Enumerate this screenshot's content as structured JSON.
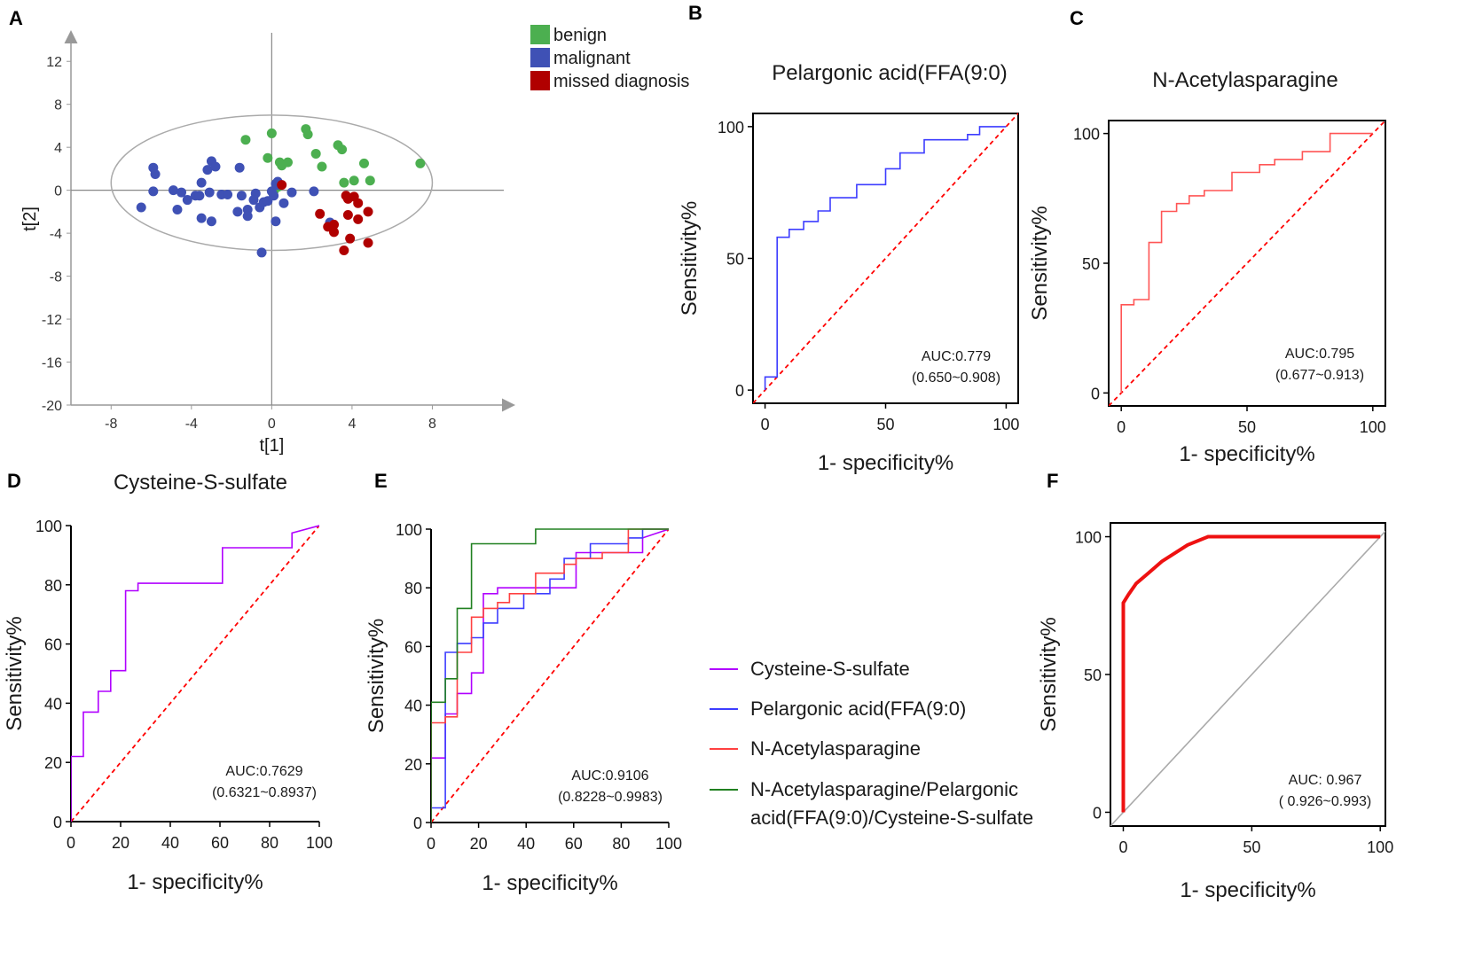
{
  "chart_data": [
    {
      "id": "A",
      "panel_label": "A",
      "type": "scatter",
      "xlabel": "t[1]",
      "ylabel": "t[2]",
      "xlim": [
        -10,
        12
      ],
      "ylim": [
        -20,
        14
      ],
      "x_ticks": [
        -8,
        -4,
        0,
        4,
        8
      ],
      "x_tick_labels": [
        "-8",
        "-4",
        "0",
        "4",
        "8"
      ],
      "y_ticks": [
        12,
        8,
        4,
        0,
        -4,
        -8,
        -12,
        -16,
        -20
      ],
      "y_tick_labels": [
        "12",
        "8",
        "4",
        "0",
        "-4",
        "-8",
        "-12",
        "-16",
        "-20"
      ],
      "ellipse": {
        "cx": 0,
        "cy": 0.7,
        "rx": 8,
        "ry": 6.3
      },
      "series": [
        {
          "name": "benign",
          "color": "#4caf50",
          "points": [
            [
              -1.3,
              4.7
            ],
            [
              0,
              5.3
            ],
            [
              1.7,
              5.7
            ],
            [
              1.8,
              5.2
            ],
            [
              -0.2,
              3
            ],
            [
              0.4,
              2.6
            ],
            [
              0.5,
              2.3
            ],
            [
              0.8,
              2.6
            ],
            [
              2.2,
              3.4
            ],
            [
              2.5,
              2.2
            ],
            [
              3.3,
              4.2
            ],
            [
              3.5,
              3.8
            ],
            [
              4.6,
              2.5
            ],
            [
              3.6,
              0.7
            ],
            [
              4.1,
              0.9
            ],
            [
              4.9,
              0.9
            ],
            [
              7.4,
              2.5
            ],
            [
              0.3,
              0.3
            ],
            [
              0.1,
              -0.1
            ]
          ]
        },
        {
          "name": "malignant",
          "color": "#3f51b5",
          "points": [
            [
              -5.9,
              2.1
            ],
            [
              -5.8,
              1.5
            ],
            [
              -5.9,
              -0.1
            ],
            [
              -6.5,
              -1.6
            ],
            [
              -4.9,
              0
            ],
            [
              -4.5,
              -0.2
            ],
            [
              -4.7,
              -1.8
            ],
            [
              -4.2,
              -0.9
            ],
            [
              -3.8,
              -0.5
            ],
            [
              -3.6,
              -0.5
            ],
            [
              -3.5,
              0.7
            ],
            [
              -3,
              2.7
            ],
            [
              -3.2,
              1.9
            ],
            [
              -2.8,
              2.2
            ],
            [
              -3.1,
              -0.2
            ],
            [
              -2.5,
              -0.4
            ],
            [
              -2.2,
              -0.4
            ],
            [
              -1.6,
              2.1
            ],
            [
              -1.5,
              -0.5
            ],
            [
              -0.8,
              -0.3
            ],
            [
              -0.6,
              -1.6
            ],
            [
              -0.4,
              -1.1
            ],
            [
              -0.2,
              -1
            ],
            [
              0.1,
              -0.5
            ],
            [
              0.2,
              0.6
            ],
            [
              0.3,
              0.8
            ],
            [
              0.6,
              -1.2
            ],
            [
              -1.7,
              -2
            ],
            [
              -3.5,
              -2.6
            ],
            [
              -3,
              -2.9
            ],
            [
              -1.2,
              -1.8
            ],
            [
              -1.2,
              -2.4
            ],
            [
              0.2,
              -2.9
            ],
            [
              -0.5,
              -5.8
            ],
            [
              1,
              -0.2
            ],
            [
              2.1,
              -0.1
            ],
            [
              2.9,
              -3
            ],
            [
              -0.9,
              -0.9
            ],
            [
              0,
              -0.1
            ],
            [
              0.3,
              0.5
            ]
          ]
        },
        {
          "name": "missed diagnosis",
          "color": "#b00000",
          "points": [
            [
              0.5,
              0.5
            ],
            [
              2.4,
              -2.2
            ],
            [
              3.1,
              -3.2
            ],
            [
              2.8,
              -3.4
            ],
            [
              3.8,
              -0.8
            ],
            [
              4.3,
              -1.2
            ],
            [
              3.8,
              -2.3
            ],
            [
              4.3,
              -2.7
            ],
            [
              4.8,
              -2
            ],
            [
              3.9,
              -4.5
            ],
            [
              3.6,
              -5.6
            ],
            [
              4.8,
              -4.9
            ],
            [
              3.1,
              -3.9
            ],
            [
              3.7,
              -0.5
            ],
            [
              4.1,
              -0.6
            ]
          ]
        }
      ]
    },
    {
      "id": "B",
      "panel_label": "B",
      "type": "line",
      "title": "Pelargonic acid(FFA(9:0)",
      "xlabel": "1- specificity%",
      "ylabel": "Sensitivity%",
      "xlim": [
        -5,
        105
      ],
      "ylim": [
        -5,
        105
      ],
      "x_ticks": [
        0,
        50,
        100
      ],
      "x_tick_labels": [
        "0",
        "50",
        "100"
      ],
      "y_ticks": [
        0,
        50,
        100
      ],
      "y_tick_labels": [
        "0",
        "50",
        "100"
      ],
      "auc_text": "AUC:0.779",
      "ci_text": "(0.650~0.908)",
      "series": [
        {
          "name": "ROC",
          "color": "#3d3dff",
          "x": [
            0,
            0,
            5,
            5,
            10,
            10,
            16,
            16,
            22,
            22,
            27,
            27,
            38,
            38,
            50,
            50,
            56,
            56,
            66,
            66,
            84,
            84,
            89,
            89,
            94,
            94,
            100
          ],
          "y": [
            0,
            5,
            5,
            58,
            58,
            61,
            61,
            64,
            64,
            68,
            68,
            73,
            73,
            78,
            78,
            84,
            84,
            90,
            90,
            95,
            95,
            97,
            97,
            100,
            100,
            100,
            100
          ]
        },
        {
          "name": "reference",
          "color": "#ff0000",
          "style": "dashed",
          "x": [
            -5,
            105
          ],
          "y": [
            -5,
            105
          ]
        }
      ]
    },
    {
      "id": "C",
      "panel_label": "C",
      "type": "line",
      "title": "N-Acetylasparagine",
      "xlabel": "1- specificity%",
      "ylabel": "Sensitivity%",
      "xlim": [
        -5,
        105
      ],
      "ylim": [
        -5,
        105
      ],
      "x_ticks": [
        0,
        50,
        100
      ],
      "x_tick_labels": [
        "0",
        "50",
        "100"
      ],
      "y_ticks": [
        0,
        50,
        100
      ],
      "y_tick_labels": [
        "0",
        "50",
        "100"
      ],
      "auc_text": "AUC:0.795",
      "ci_text": "(0.677~0.913)",
      "series": [
        {
          "name": "ROC",
          "color": "#ff5555",
          "x": [
            0,
            0,
            5,
            5,
            11,
            11,
            16,
            16,
            22,
            22,
            27,
            27,
            33,
            33,
            44,
            44,
            55,
            55,
            61,
            61,
            72,
            72,
            83,
            83,
            100
          ],
          "y": [
            0,
            34,
            34,
            36,
            36,
            58,
            58,
            70,
            70,
            73,
            73,
            76,
            76,
            78,
            78,
            85,
            85,
            88,
            88,
            90,
            90,
            93,
            93,
            100,
            100
          ]
        },
        {
          "name": "reference",
          "color": "#ff0000",
          "style": "dashed",
          "x": [
            -5,
            105
          ],
          "y": [
            -5,
            105
          ]
        }
      ]
    },
    {
      "id": "D",
      "panel_label": "D",
      "type": "line",
      "title": "Cysteine-S-sulfate",
      "xlabel": "1- specificity%",
      "ylabel": "Sensitivity%",
      "xlim": [
        0,
        100
      ],
      "ylim": [
        0,
        100
      ],
      "x_ticks": [
        0,
        20,
        40,
        60,
        80,
        100
      ],
      "x_tick_labels": [
        "0",
        "20",
        "40",
        "60",
        "80",
        "100"
      ],
      "y_ticks": [
        0,
        20,
        40,
        60,
        80,
        100
      ],
      "y_tick_labels": [
        "0",
        "20",
        "40",
        "60",
        "80",
        "100"
      ],
      "auc_text": "AUC:0.7629",
      "ci_text": "(0.6321~0.8937)",
      "series": [
        {
          "name": "ROC",
          "color": "#b000ff",
          "x": [
            0,
            0,
            5,
            5,
            11,
            11,
            16,
            16,
            22,
            22,
            27,
            27,
            61,
            61,
            89,
            89,
            100
          ],
          "y": [
            0,
            22,
            22,
            37,
            37,
            44,
            44,
            51,
            51,
            78,
            78,
            80.5,
            80.5,
            92.5,
            92.5,
            97.5,
            100
          ]
        },
        {
          "name": "reference",
          "color": "#ff0000",
          "style": "dashed",
          "x": [
            0,
            100
          ],
          "y": [
            0,
            100
          ]
        }
      ]
    },
    {
      "id": "E",
      "panel_label": "E",
      "type": "line",
      "xlabel": "1- specificity%",
      "ylabel": "Sensitivity%",
      "xlim": [
        0,
        100
      ],
      "ylim": [
        0,
        100
      ],
      "x_ticks": [
        0,
        20,
        40,
        60,
        80,
        100
      ],
      "x_tick_labels": [
        "0",
        "20",
        "40",
        "60",
        "80",
        "100"
      ],
      "y_ticks": [
        0,
        20,
        40,
        60,
        80,
        100
      ],
      "y_tick_labels": [
        "0",
        "20",
        "40",
        "60",
        "80",
        "100"
      ],
      "auc_text": "AUC:0.9106",
      "ci_text": "(0.8228~0.9983)",
      "series": [
        {
          "name": "Cysteine-S-sulfate",
          "color": "#b000ff",
          "x": [
            0,
            0,
            6,
            6,
            11,
            11,
            17,
            17,
            22,
            22,
            28,
            28,
            61,
            61,
            89,
            89,
            100
          ],
          "y": [
            0,
            22,
            22,
            37,
            37,
            44,
            44,
            51,
            51,
            78,
            78,
            80,
            80,
            92,
            92,
            97,
            100
          ]
        },
        {
          "name": "Pelargonic acid(FFA(9:0)",
          "color": "#3d3dff",
          "x": [
            0,
            0,
            6,
            6,
            11,
            11,
            17,
            17,
            22,
            22,
            28,
            28,
            39,
            39,
            50,
            50,
            56,
            56,
            67,
            67,
            83,
            83,
            89,
            89,
            100
          ],
          "y": [
            0,
            5,
            5,
            58,
            58,
            61,
            61,
            63,
            63,
            68,
            68,
            73,
            73,
            78,
            78,
            83,
            83,
            90,
            90,
            95,
            95,
            97,
            97,
            100,
            100
          ]
        },
        {
          "name": "N-Acetylasparagine",
          "color": "#ff4040",
          "x": [
            0,
            0,
            6,
            6,
            11,
            11,
            17,
            17,
            22,
            22,
            28,
            28,
            33,
            33,
            44,
            44,
            56,
            56,
            61,
            61,
            72,
            72,
            83,
            83,
            100
          ],
          "y": [
            0,
            34,
            34,
            36,
            36,
            58,
            58,
            70,
            70,
            73,
            73,
            75,
            75,
            78,
            78,
            85,
            85,
            88,
            88,
            90,
            90,
            92,
            92,
            100,
            100
          ]
        },
        {
          "name": "N-Acetylasparagine/Pelargonic acid(FFA(9:0)/Cysteine-S-sulfate",
          "color": "#208020",
          "x": [
            0,
            0,
            6,
            6,
            11,
            11,
            17,
            17,
            44,
            44,
            100
          ],
          "y": [
            0,
            41,
            41,
            49,
            49,
            73,
            73,
            95,
            95,
            100,
            100
          ]
        },
        {
          "name": "reference",
          "color": "#ff0000",
          "style": "dashed",
          "x": [
            0,
            100
          ],
          "y": [
            0,
            100
          ]
        }
      ],
      "legend": [
        {
          "label": "Cysteine-S-sulfate",
          "color": "#b000ff"
        },
        {
          "label": "Pelargonic acid(FFA(9:0)",
          "color": "#3d3dff"
        },
        {
          "label": "N-Acetylasparagine",
          "color": "#ff4040"
        },
        {
          "label": "N-Acetylasparagine/Pelargonic",
          "label2": "acid(FFA(9:0)/Cysteine-S-sulfate",
          "color": "#208020"
        }
      ]
    },
    {
      "id": "F",
      "panel_label": "F",
      "type": "line",
      "xlabel": "1- specificity%",
      "ylabel": "Sensitivity%",
      "xlim": [
        -5,
        102
      ],
      "ylim": [
        -5,
        105
      ],
      "x_ticks": [
        0,
        50,
        100
      ],
      "x_tick_labels": [
        "0",
        "50",
        "100"
      ],
      "y_ticks": [
        0,
        50,
        100
      ],
      "y_tick_labels": [
        "0",
        "50",
        "100"
      ],
      "auc_text": "AUC: 0.967",
      "ci_text": "( 0.926~0.993)",
      "series": [
        {
          "name": "ROC",
          "color": "#ee1111",
          "x": [
            0,
            0,
            2,
            5,
            10,
            15,
            25,
            33,
            100
          ],
          "y": [
            0,
            76,
            79,
            83,
            87,
            91,
            97,
            100,
            100
          ]
        },
        {
          "name": "reference",
          "color": "#aaaaaa",
          "style": "solid",
          "x": [
            -5,
            102
          ],
          "y": [
            -5,
            102
          ]
        }
      ]
    }
  ],
  "scatter_legend": [
    {
      "label": "benign",
      "color": "#4caf50"
    },
    {
      "label": "malignant",
      "color": "#3f51b5"
    },
    {
      "label": "missed diagnosis",
      "color": "#b00000"
    }
  ]
}
